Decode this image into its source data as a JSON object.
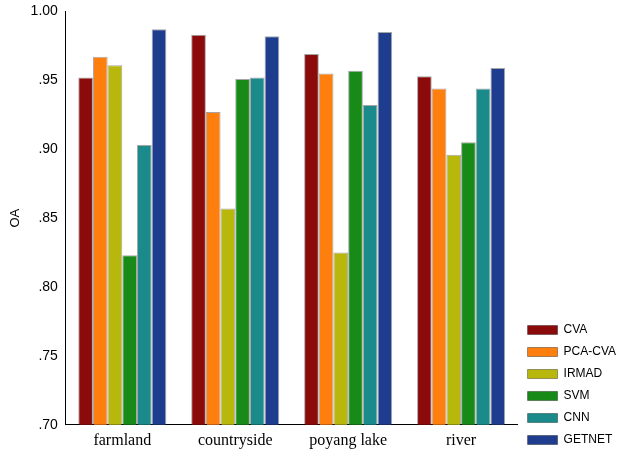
{
  "chart_data": {
    "type": "bar",
    "y_label": "OA",
    "categories": [
      "farmland",
      "countryside",
      "poyang lake",
      "river"
    ],
    "series": [
      {
        "name": "CVA",
        "color": "#8b0a0a",
        "values": [
          0.952,
          0.983,
          0.969,
          0.953
        ]
      },
      {
        "name": "PCA-CVA",
        "color": "#ff7f0e",
        "values": [
          0.967,
          0.927,
          0.955,
          0.944
        ]
      },
      {
        "name": "IRMAD",
        "color": "#b8b80c",
        "values": [
          0.961,
          0.857,
          0.825,
          0.896
        ]
      },
      {
        "name": "SVM",
        "color": "#178a17",
        "values": [
          0.823,
          0.951,
          0.957,
          0.905
        ]
      },
      {
        "name": "CNN",
        "color": "#1a8a8a",
        "values": [
          0.903,
          0.952,
          0.932,
          0.944
        ]
      },
      {
        "name": "GETNET",
        "color": "#1f3d8f",
        "values": [
          0.987,
          0.982,
          0.985,
          0.959
        ]
      }
    ],
    "ylim": [
      0.7,
      1.0
    ],
    "yticks": [
      {
        "value": 0.7,
        "label": ".70"
      },
      {
        "value": 0.75,
        "label": ".75"
      },
      {
        "value": 0.8,
        "label": ".80"
      },
      {
        "value": 0.85,
        "label": ".85"
      },
      {
        "value": 0.9,
        "label": ".90"
      },
      {
        "value": 0.95,
        "label": ".95"
      },
      {
        "value": 1.0,
        "label": "1.00"
      }
    ],
    "grid": false,
    "legend": "right"
  }
}
